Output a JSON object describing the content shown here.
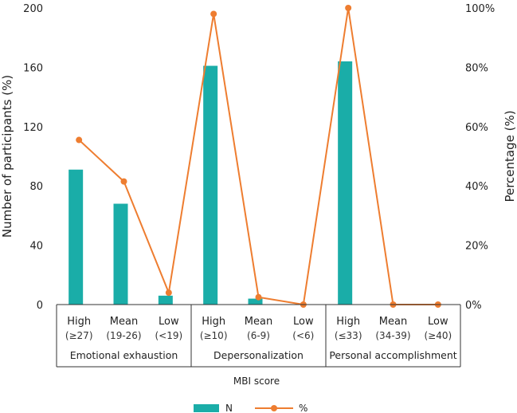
{
  "chart_data": {
    "type": "bar+line",
    "title": "",
    "xlabel": "MBI score",
    "ylabel_left": "Number of participants (%)",
    "ylabel_right": "Percentage (%)",
    "ylim_left": [
      0,
      200
    ],
    "ylim_right": [
      0,
      100
    ],
    "yticks_left": [
      "0",
      "40",
      "80",
      "120",
      "160",
      "200"
    ],
    "yticks_right": [
      "0%",
      "20%",
      "40%",
      "60%",
      "80%",
      "100%"
    ],
    "groups": [
      "Emotional exhaustion",
      "Depersonalization",
      "Personal accomplishment"
    ],
    "categories": [
      {
        "label": "High",
        "range": "(≥27)"
      },
      {
        "label": "Mean",
        "range": "(19-26)"
      },
      {
        "label": "Low",
        "range": "(<19)"
      },
      {
        "label": "High",
        "range": "(≥10)"
      },
      {
        "label": "Mean",
        "range": "(6-9)"
      },
      {
        "label": "Low",
        "range": "(<6)"
      },
      {
        "label": "High",
        "range": "(≤33)"
      },
      {
        "label": "Mean",
        "range": "(34-39)"
      },
      {
        "label": "Low",
        "range": "(≥40)"
      }
    ],
    "series": [
      {
        "name": "N",
        "type": "bar",
        "axis": "left",
        "color": "#1aada8",
        "values": [
          91,
          68,
          6,
          161,
          4,
          0,
          164,
          0,
          0
        ]
      },
      {
        "name": "%",
        "type": "line",
        "axis": "right",
        "color": "#ee7d30",
        "values": [
          55.5,
          41.5,
          4,
          98,
          2.5,
          0,
          100,
          0,
          0
        ]
      }
    ],
    "legend_position": "bottom"
  }
}
